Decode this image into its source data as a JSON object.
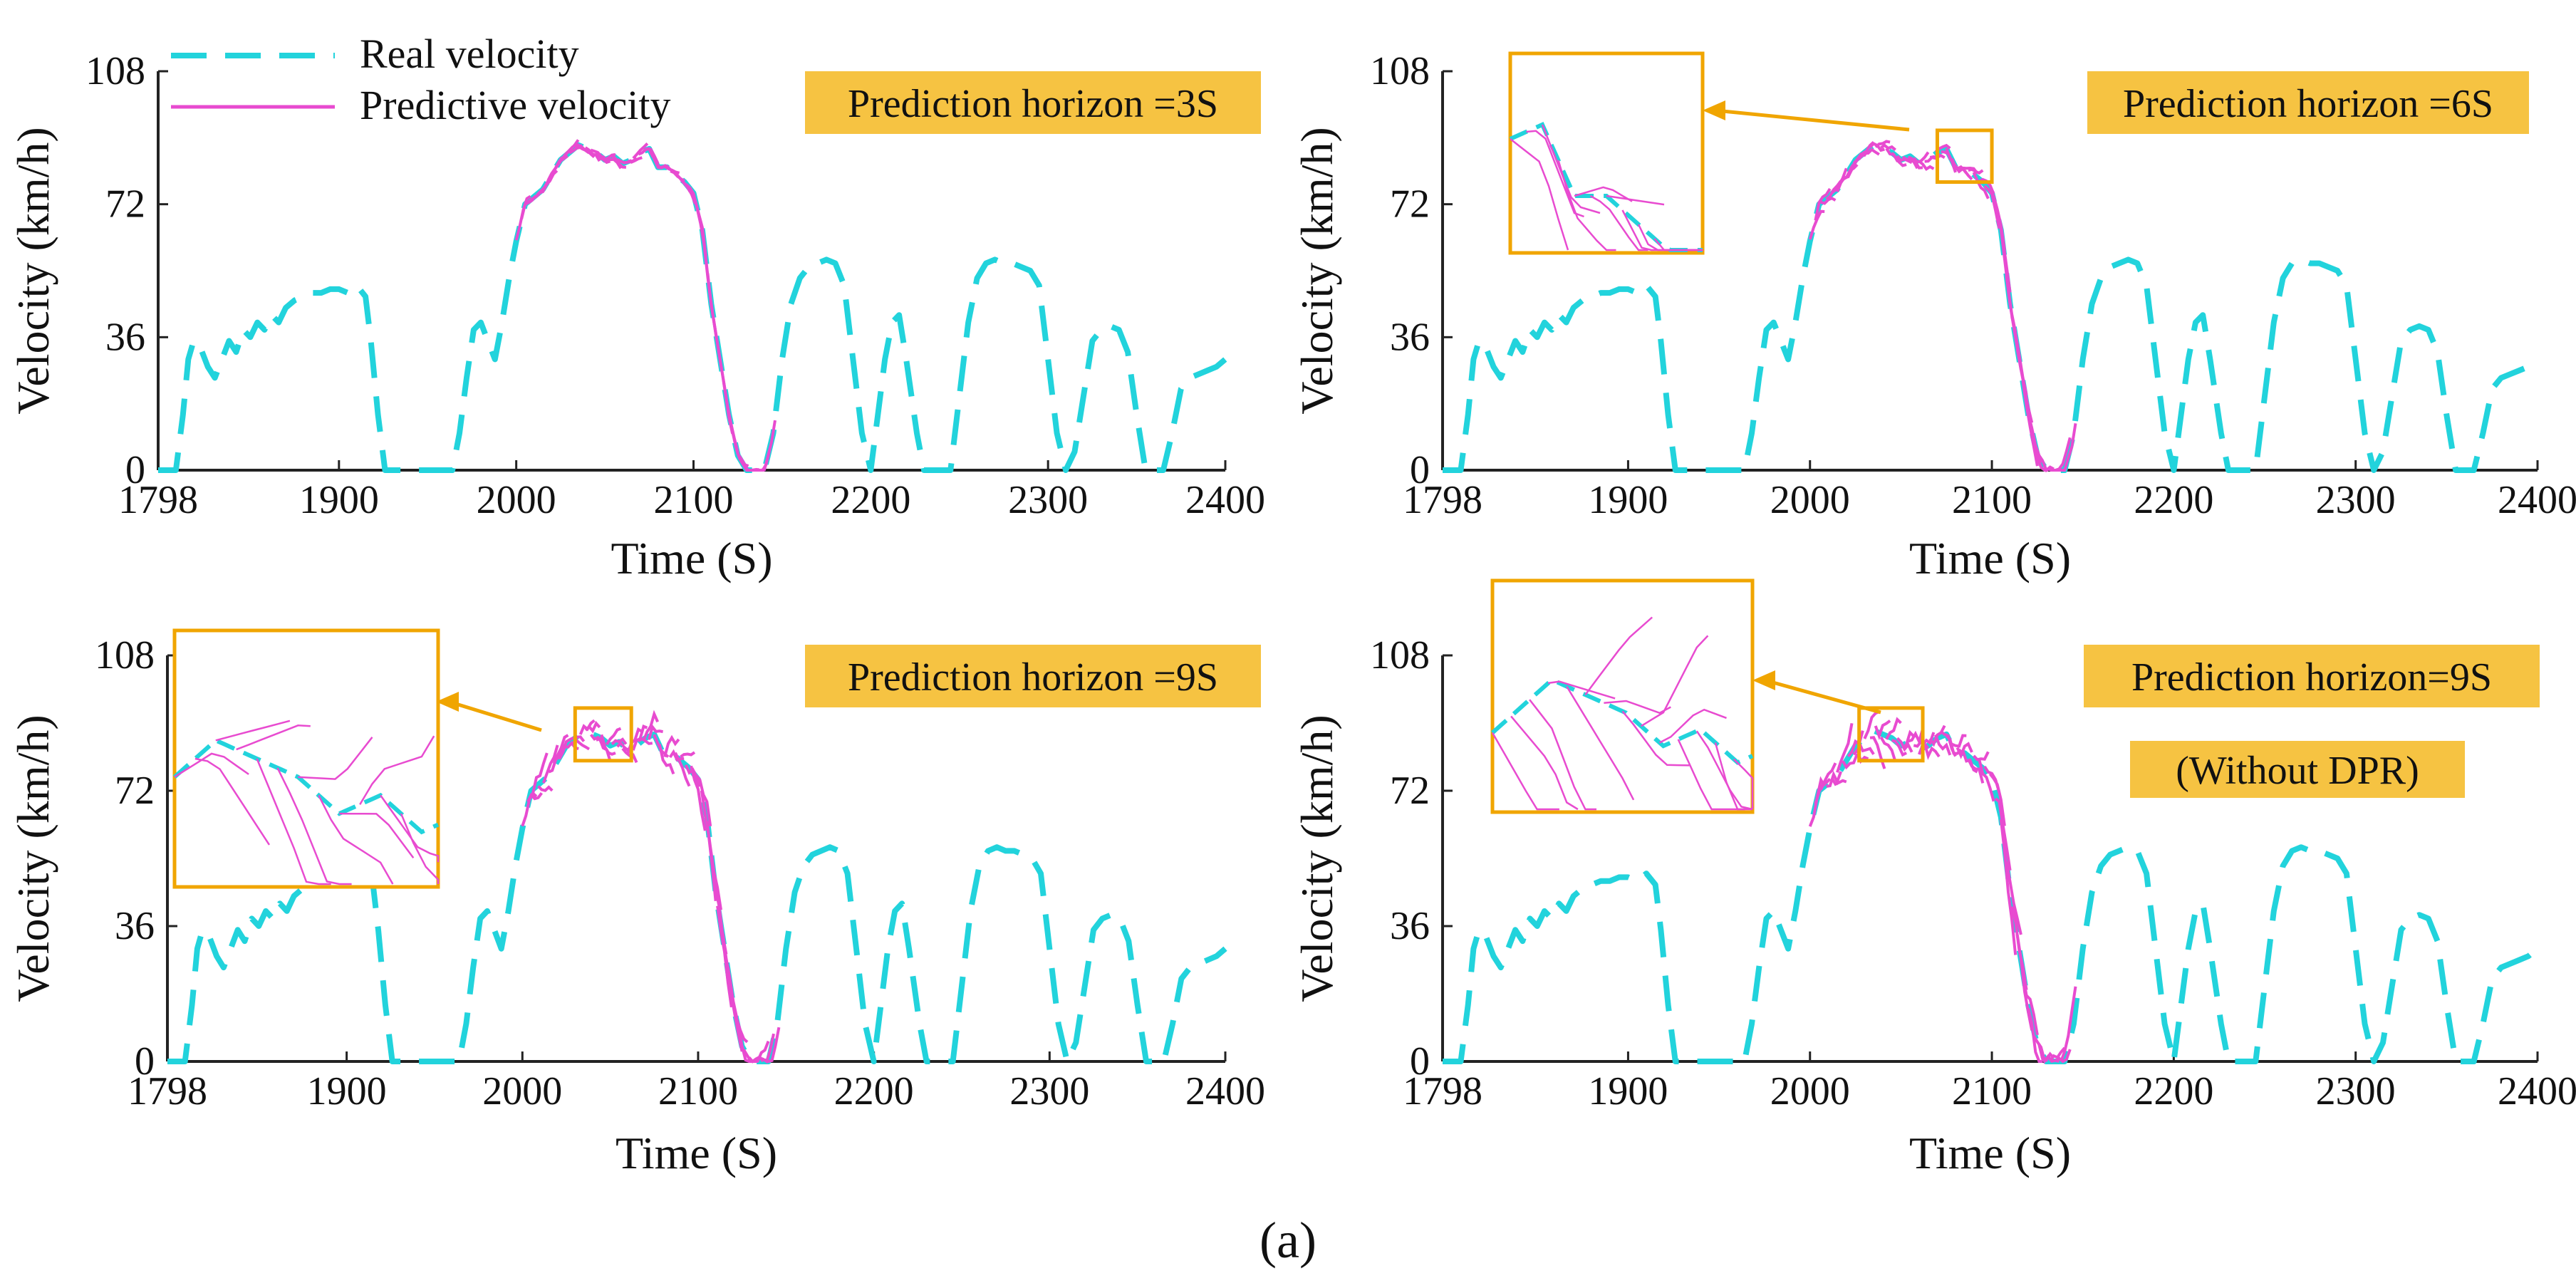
{
  "figure": {
    "caption": "(a)"
  },
  "legend": [
    {
      "label": "Real velocity",
      "color": "#22d3dc",
      "style": "dashed"
    },
    {
      "label": "Predictive velocity",
      "color": "#e84bd0",
      "style": "solid"
    }
  ],
  "colors": {
    "real": "#22d3dc",
    "predicted": "#e84bd0",
    "highlight": "#f6c342",
    "highlight_border": "#f0a500"
  },
  "chart_data": [
    {
      "type": "line",
      "panel": "top-left",
      "annotation": "Prediction horizon =3S",
      "xlabel": "Time (S)",
      "ylabel": "Velocity (km/h)",
      "xlim": [
        1798,
        2400
      ],
      "ylim": [
        0,
        108
      ],
      "xticks": [
        "1798",
        "1900",
        "2000",
        "2100",
        "2200",
        "2300",
        "2400"
      ],
      "yticks": [
        "0",
        "36",
        "72",
        "108"
      ],
      "prediction_spread": 1.5,
      "zoom_inset": null
    },
    {
      "type": "line",
      "panel": "top-right",
      "annotation": "Prediction horizon =6S",
      "xlabel": "Time (S)",
      "ylabel": "Velocity (km/h)",
      "xlim": [
        1798,
        2400
      ],
      "ylim": [
        0,
        108
      ],
      "xticks": [
        "1798",
        "1900",
        "2000",
        "2100",
        "2200",
        "2300",
        "2400"
      ],
      "yticks": [
        "0",
        "36",
        "72",
        "108"
      ],
      "prediction_spread": 3.5,
      "zoom_inset": {
        "x_range": [
          2070,
          2100
        ],
        "y_range": [
          78,
          92
        ]
      }
    },
    {
      "type": "line",
      "panel": "bottom-left",
      "annotation": "Prediction horizon =9S",
      "xlabel": "Time (S)",
      "ylabel": "Velocity (km/h)",
      "xlim": [
        1798,
        2400
      ],
      "ylim": [
        0,
        108
      ],
      "xticks": [
        "1798",
        "1900",
        "2000",
        "2100",
        "2200",
        "2300",
        "2400"
      ],
      "yticks": [
        "0",
        "36",
        "72",
        "108"
      ],
      "prediction_spread": 6,
      "zoom_inset": {
        "x_range": [
          2030,
          2062
        ],
        "y_range": [
          80,
          94
        ]
      }
    },
    {
      "type": "line",
      "panel": "bottom-right",
      "annotation": "Prediction horizon=9S",
      "annotation2": "(Without DPR)",
      "xlabel": "Time (S)",
      "ylabel": "Velocity (km/h)",
      "xlim": [
        1798,
        2400
      ],
      "ylim": [
        0,
        108
      ],
      "xticks": [
        "1798",
        "1900",
        "2000",
        "2100",
        "2200",
        "2300",
        "2400"
      ],
      "yticks": [
        "0",
        "36",
        "72",
        "108"
      ],
      "prediction_spread": 8,
      "zoom_inset": {
        "x_range": [
          2027,
          2062
        ],
        "y_range": [
          80,
          94
        ]
      }
    }
  ],
  "real_velocity": {
    "x": [
      1798,
      1808,
      1812,
      1815,
      1818,
      1822,
      1826,
      1830,
      1834,
      1838,
      1842,
      1846,
      1850,
      1854,
      1858,
      1862,
      1866,
      1870,
      1875,
      1880,
      1885,
      1890,
      1895,
      1900,
      1905,
      1910,
      1915,
      1918,
      1922,
      1926,
      1930,
      1940,
      1950,
      1960,
      1964,
      1968,
      1972,
      1976,
      1980,
      1984,
      1988,
      1992,
      1996,
      2000,
      2005,
      2010,
      2015,
      2020,
      2025,
      2030,
      2035,
      2040,
      2045,
      2050,
      2055,
      2060,
      2065,
      2070,
      2075,
      2080,
      2085,
      2090,
      2095,
      2100,
      2105,
      2110,
      2115,
      2120,
      2125,
      2130,
      2135,
      2140,
      2145,
      2150,
      2155,
      2160,
      2165,
      2170,
      2175,
      2180,
      2185,
      2190,
      2195,
      2200,
      2204,
      2208,
      2212,
      2216,
      2220,
      2226,
      2230,
      2235,
      2240,
      2245,
      2250,
      2255,
      2260,
      2265,
      2270,
      2275,
      2280,
      2285,
      2290,
      2295,
      2300,
      2305,
      2310,
      2315,
      2320,
      2325,
      2330,
      2335,
      2340,
      2345,
      2350,
      2355,
      2360,
      2365,
      2370,
      2375,
      2380,
      2385,
      2390,
      2395,
      2400
    ],
    "y": [
      0,
      0,
      15,
      30,
      35,
      33,
      28,
      25,
      30,
      35,
      32,
      38,
      36,
      40,
      38,
      42,
      40,
      44,
      46,
      47,
      48,
      48,
      49,
      49,
      48,
      50,
      47,
      35,
      15,
      0,
      0,
      0,
      0,
      0,
      0,
      10,
      25,
      38,
      40,
      35,
      30,
      40,
      52,
      62,
      72,
      74,
      76,
      80,
      84,
      86,
      88,
      87,
      86,
      84,
      85,
      83,
      84,
      86,
      87,
      82,
      82,
      80,
      78,
      75,
      65,
      45,
      30,
      15,
      4,
      0,
      0,
      0,
      10,
      30,
      45,
      52,
      55,
      56,
      57,
      56,
      50,
      30,
      10,
      0,
      15,
      30,
      40,
      42,
      30,
      10,
      0,
      0,
      0,
      0,
      20,
      40,
      52,
      56,
      57,
      56,
      56,
      55,
      54,
      50,
      30,
      10,
      0,
      5,
      20,
      35,
      38,
      39,
      38,
      32,
      15,
      0,
      0,
      0,
      10,
      22,
      25,
      26,
      27,
      28,
      30
    ]
  }
}
